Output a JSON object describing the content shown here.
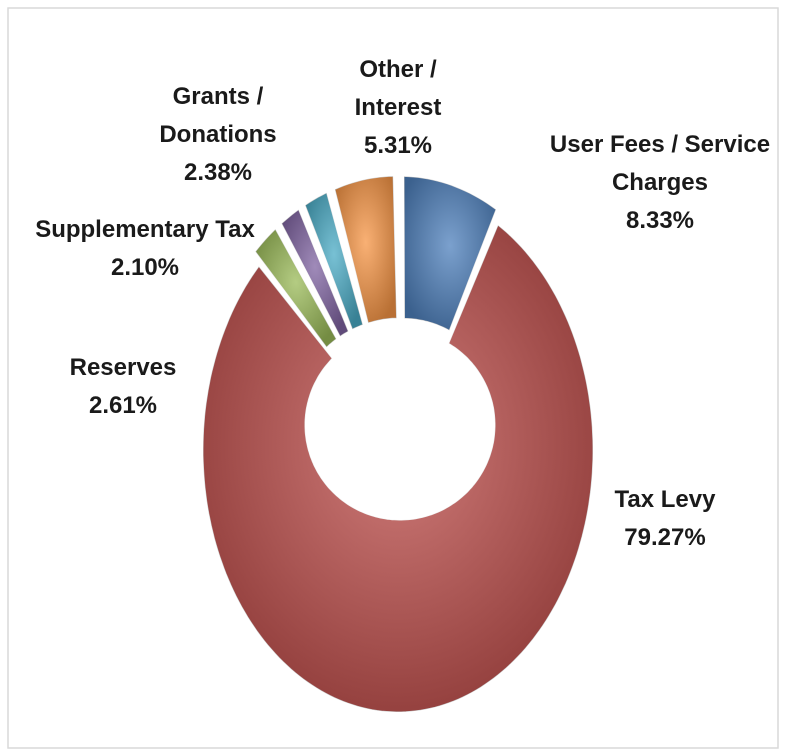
{
  "chart_data": {
    "type": "donut",
    "categories": [
      "User Fees / Service Charges",
      "Tax Levy",
      "Reserves",
      "Supplementary Tax",
      "Grants / Donations",
      "Other / Interest"
    ],
    "values": [
      8.33,
      79.27,
      2.61,
      2.1,
      2.38,
      5.31
    ],
    "value_labels": [
      "8.33%",
      "79.27%",
      "2.61%",
      "2.10%",
      "2.38%",
      "5.31%"
    ],
    "colors": [
      "#4f81bd",
      "#c0504d",
      "#9bbb59",
      "#8064a2",
      "#4bacc6",
      "#f79646"
    ]
  }
}
